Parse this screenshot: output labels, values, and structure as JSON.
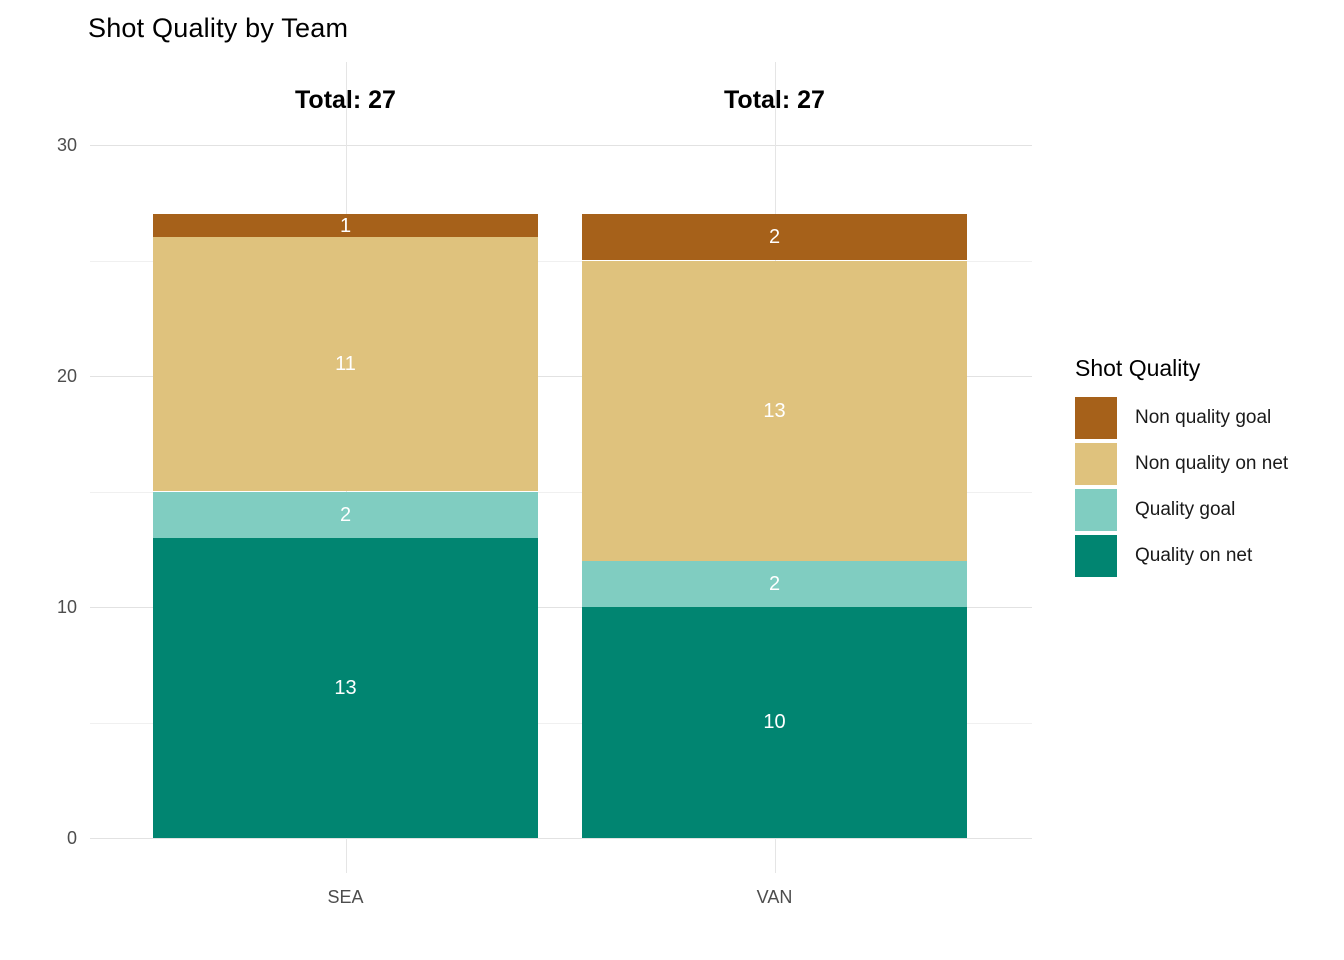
{
  "title": "Shot Quality by Team",
  "chart_data": {
    "type": "bar",
    "stacked": true,
    "title": "Shot Quality by Team",
    "xlabel": "",
    "ylabel": "",
    "categories": [
      "SEA",
      "VAN"
    ],
    "series": [
      {
        "name": "Quality on net",
        "color": "#018571",
        "values": [
          13,
          10
        ]
      },
      {
        "name": "Quality goal",
        "color": "#80CDC1",
        "values": [
          2,
          2
        ]
      },
      {
        "name": "Non quality on net",
        "color": "#DFC27D",
        "values": [
          11,
          13
        ]
      },
      {
        "name": "Non quality goal",
        "color": "#A6611A",
        "values": [
          1,
          2
        ]
      }
    ],
    "segment_labels_shown": true,
    "totals": [
      27,
      27
    ],
    "total_label_prefix": "Total: ",
    "y_ticks_major": [
      0,
      10,
      20,
      30
    ],
    "y_gridlines_major": [
      0,
      10,
      20,
      30
    ],
    "y_gridlines_minor": [
      5,
      15,
      25
    ],
    "ylim": [
      0,
      30
    ],
    "grid": true,
    "legend": {
      "title": "Shot Quality",
      "position": "right",
      "entries": [
        {
          "label": "Non quality goal",
          "color": "#A6611A"
        },
        {
          "label": "Non quality on net",
          "color": "#DFC27D"
        },
        {
          "label": "Quality goal",
          "color": "#80CDC1"
        },
        {
          "label": "Quality on net",
          "color": "#018571"
        }
      ]
    }
  },
  "colors": {
    "background": "#ffffff",
    "grid_major": "#e2e2e2",
    "grid_minor": "#f0f0f0",
    "axis_text": "#4d4d4d",
    "bar_label_text": "#ffffff",
    "title_text": "#000000"
  }
}
